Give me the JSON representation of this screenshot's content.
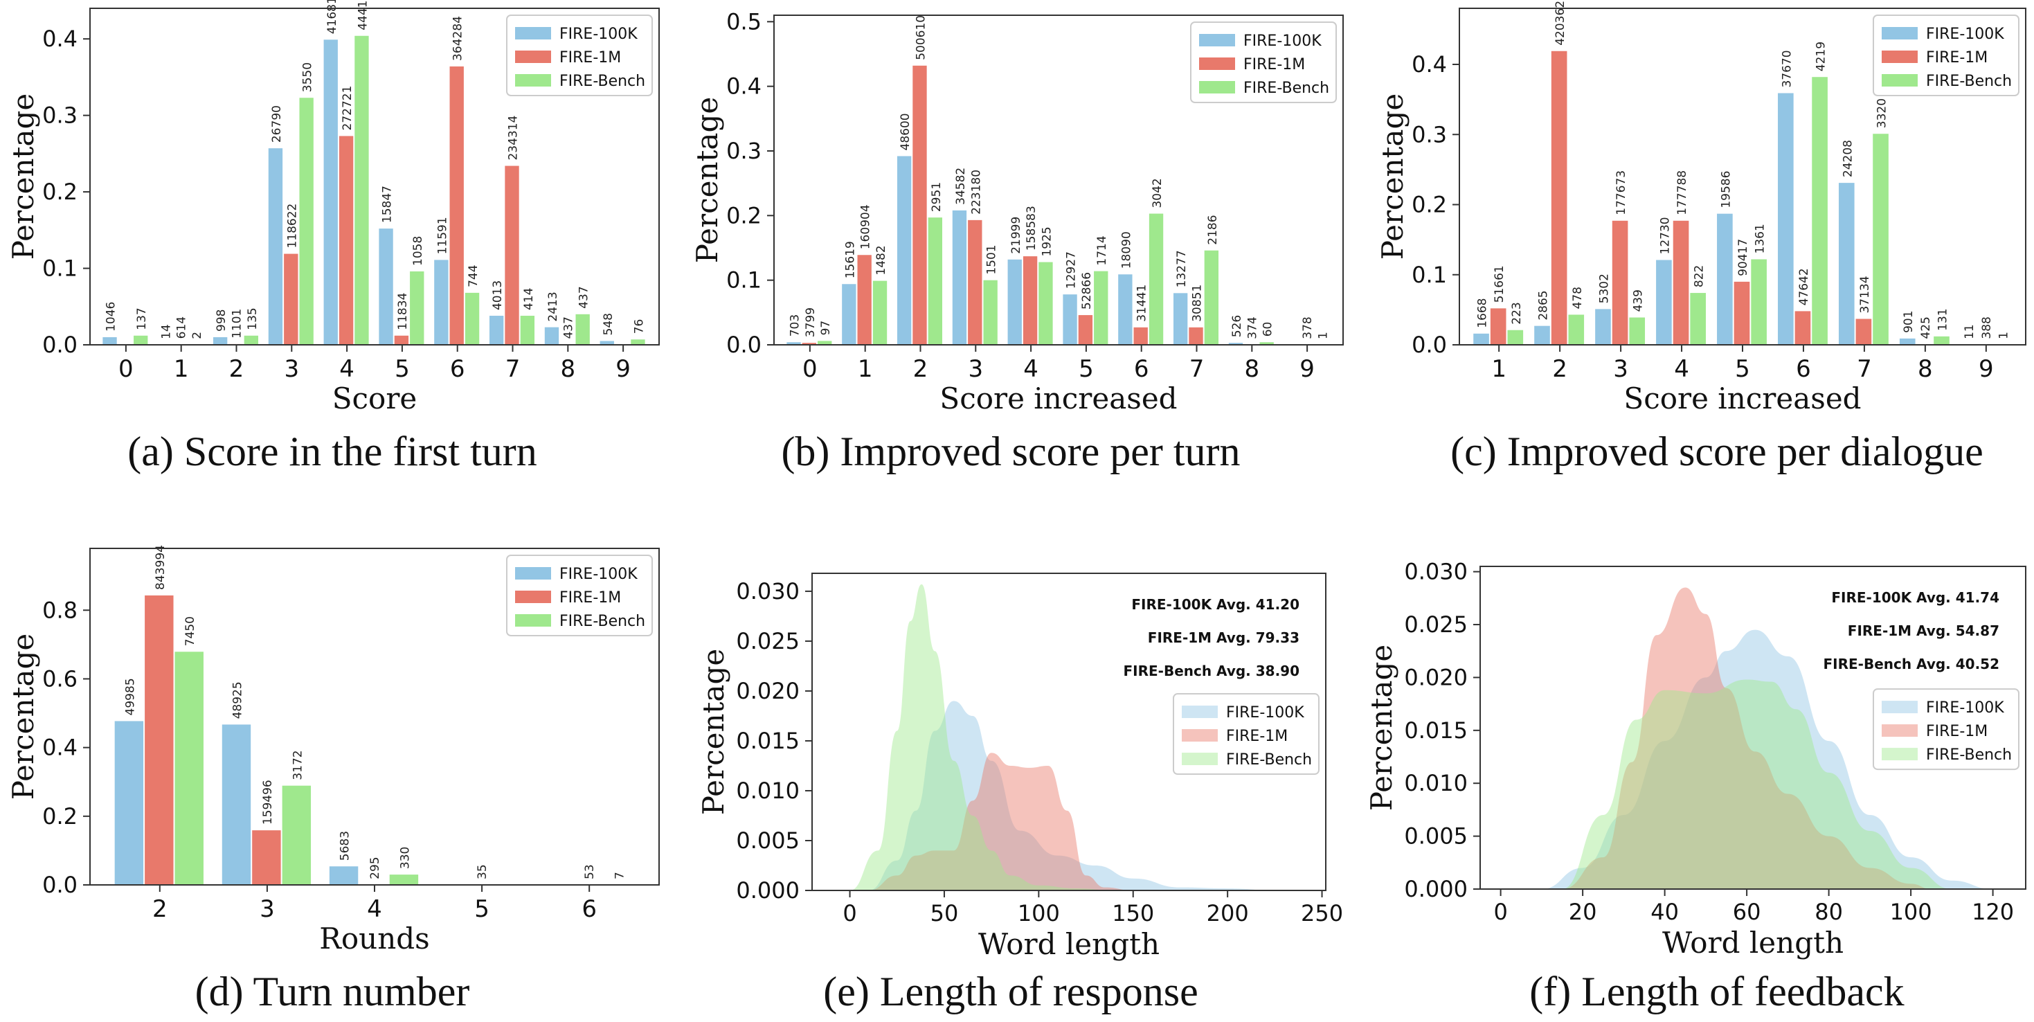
{
  "colors": {
    "fire100k": "#92c5e4",
    "fire1m": "#e8796b",
    "firebench": "#9fe88d"
  },
  "captions": [
    "(a) Score in the first turn",
    "(b) Improved score per turn",
    "(c) Improved score per dialogue",
    "(d) Turn number",
    "(e) Length of response",
    "(f) Length of feedback"
  ],
  "chart_data": [
    {
      "type": "bar",
      "xlabel": "Score",
      "ylabel": "Percentage",
      "categories": [
        "0",
        "1",
        "2",
        "3",
        "4",
        "5",
        "6",
        "7",
        "8",
        "9"
      ],
      "ylim": [
        0,
        0.44
      ],
      "yticks": [
        "0.0",
        "0.1",
        "0.2",
        "0.3",
        "0.4"
      ],
      "legend_position": "top-right",
      "series": [
        {
          "name": "FIRE-100K",
          "values": [
            0.01,
            0.0001,
            0.01,
            0.257,
            0.399,
            0.152,
            0.111,
            0.038,
            0.023,
            0.005
          ],
          "labels": [
            "1046",
            "14",
            "998",
            "26790",
            "41681",
            "15847",
            "11591",
            "4013",
            "2413",
            "548"
          ]
        },
        {
          "name": "FIRE-1M",
          "values": [
            0.0001,
            0.0006,
            0.001,
            0.119,
            0.273,
            0.012,
            0.364,
            0.234,
            0.0004,
            0.0
          ],
          "labels": [
            "",
            "614",
            "1101",
            "118622",
            "272721",
            "11834",
            "364284",
            "234314",
            "437",
            ""
          ]
        },
        {
          "name": "FIRE-Bench",
          "values": [
            0.012,
            0.0002,
            0.012,
            0.323,
            0.404,
            0.096,
            0.068,
            0.038,
            0.04,
            0.007
          ],
          "labels": [
            "137",
            "2",
            "135",
            "3550",
            "4441",
            "1058",
            "744",
            "414",
            "437",
            "76"
          ]
        }
      ]
    },
    {
      "type": "bar",
      "xlabel": "Score increased",
      "ylabel": "Percentage",
      "categories": [
        "0",
        "1",
        "2",
        "3",
        "4",
        "5",
        "6",
        "7",
        "8",
        "9"
      ],
      "ylim": [
        0,
        0.51
      ],
      "yticks": [
        "0.0",
        "0.1",
        "0.2",
        "0.3",
        "0.4",
        "0.5"
      ],
      "legend_position": "top-right",
      "series": [
        {
          "name": "FIRE-100K",
          "values": [
            0.004,
            0.094,
            0.292,
            0.208,
            0.132,
            0.078,
            0.109,
            0.08,
            0.003,
            0.0
          ],
          "labels": [
            "703",
            "15619",
            "48600",
            "34582",
            "21999",
            "12927",
            "18090",
            "13277",
            "526",
            ""
          ]
        },
        {
          "name": "FIRE-1M",
          "values": [
            0.003,
            0.139,
            0.432,
            0.193,
            0.137,
            0.046,
            0.027,
            0.027,
            0.0003,
            0.0003
          ],
          "labels": [
            "3799",
            "160904",
            "500610",
            "223180",
            "158583",
            "52866",
            "31441",
            "30851",
            "374",
            "378"
          ]
        },
        {
          "name": "FIRE-Bench",
          "values": [
            0.006,
            0.099,
            0.197,
            0.1,
            0.128,
            0.114,
            0.203,
            0.146,
            0.004,
            0.0
          ],
          "labels": [
            "97",
            "1482",
            "2951",
            "1501",
            "1925",
            "1714",
            "3042",
            "2186",
            "60",
            "1"
          ]
        }
      ]
    },
    {
      "type": "bar",
      "xlabel": "Score increased",
      "ylabel": "Percentage",
      "categories": [
        "1",
        "2",
        "3",
        "4",
        "5",
        "6",
        "7",
        "8",
        "9"
      ],
      "ylim": [
        0,
        0.48
      ],
      "yticks": [
        "0.0",
        "0.1",
        "0.2",
        "0.3",
        "0.4"
      ],
      "legend_position": "top-right",
      "series": [
        {
          "name": "FIRE-100K",
          "values": [
            0.016,
            0.027,
            0.051,
            0.121,
            0.187,
            0.359,
            0.231,
            0.009,
            0.0001
          ],
          "labels": [
            "1668",
            "2865",
            "5302",
            "12730",
            "19586",
            "37670",
            "24208",
            "901",
            "11"
          ]
        },
        {
          "name": "FIRE-1M",
          "values": [
            0.052,
            0.419,
            0.177,
            0.177,
            0.09,
            0.048,
            0.037,
            0.0004,
            0.0004
          ],
          "labels": [
            "51661",
            "420362",
            "177673",
            "177788",
            "90417",
            "47642",
            "37134",
            "425",
            "388"
          ]
        },
        {
          "name": "FIRE-Bench",
          "values": [
            0.021,
            0.043,
            0.039,
            0.074,
            0.122,
            0.382,
            0.301,
            0.012,
            0.0001
          ],
          "labels": [
            "223",
            "478",
            "439",
            "822",
            "1361",
            "4219",
            "3320",
            "131",
            "1"
          ]
        }
      ]
    },
    {
      "type": "bar",
      "xlabel": "Rounds",
      "ylabel": "Percentage",
      "categories": [
        "2",
        "3",
        "4",
        "5",
        "6"
      ],
      "ylim": [
        0,
        0.98
      ],
      "yticks": [
        "0.0",
        "0.2",
        "0.4",
        "0.6",
        "0.8"
      ],
      "legend_position": "top-right",
      "series": [
        {
          "name": "FIRE-100K",
          "values": [
            0.477,
            0.467,
            0.054,
            0.0,
            0.0
          ],
          "labels": [
            "49985",
            "48925",
            "5683",
            "",
            ""
          ]
        },
        {
          "name": "FIRE-1M",
          "values": [
            0.843,
            0.159,
            0.0003,
            0.0,
            0.0
          ],
          "labels": [
            "843994",
            "159496",
            "295",
            "35",
            "53"
          ]
        },
        {
          "name": "FIRE-Bench",
          "values": [
            0.679,
            0.289,
            0.03,
            0.0,
            0.0
          ],
          "labels": [
            "7450",
            "3172",
            "330",
            "",
            "7"
          ]
        }
      ]
    },
    {
      "type": "area",
      "xlabel": "Word length",
      "ylabel": "Percentage",
      "xlim": [
        -20,
        252
      ],
      "ylim": [
        0,
        0.0318
      ],
      "xticks": [
        "0",
        "50",
        "100",
        "150",
        "200",
        "250"
      ],
      "yticks": [
        "0.000",
        "0.005",
        "0.010",
        "0.015",
        "0.020",
        "0.025",
        "0.030"
      ],
      "legend_position": "center-right",
      "annotations": [
        "FIRE-100K Avg. 41.20",
        "FIRE-1M Avg. 79.33",
        "FIRE-Bench Avg. 38.90"
      ],
      "series": [
        {
          "name": "FIRE-100K",
          "x": [
            10,
            25,
            35,
            45,
            55,
            65,
            75,
            90,
            110,
            130,
            150,
            175,
            200,
            225
          ],
          "y": [
            0,
            0.003,
            0.008,
            0.016,
            0.019,
            0.0175,
            0.013,
            0.006,
            0.0035,
            0.0025,
            0.0012,
            0.0003,
            0.0002,
            0
          ]
        },
        {
          "name": "FIRE-1M",
          "x": [
            10,
            25,
            35,
            45,
            55,
            65,
            75,
            85,
            95,
            105,
            115,
            125,
            135,
            150
          ],
          "y": [
            0,
            0.0015,
            0.0035,
            0.004,
            0.004,
            0.009,
            0.0138,
            0.0125,
            0.0123,
            0.0125,
            0.008,
            0.0015,
            0.0003,
            0
          ]
        },
        {
          "name": "FIRE-Bench",
          "x": [
            0,
            15,
            25,
            32,
            38,
            45,
            55,
            65,
            75,
            85,
            100,
            120,
            140
          ],
          "y": [
            0,
            0.004,
            0.016,
            0.027,
            0.0307,
            0.024,
            0.013,
            0.0075,
            0.004,
            0.0015,
            0.0005,
            0.0002,
            0
          ]
        }
      ]
    },
    {
      "type": "area",
      "xlabel": "Word length",
      "ylabel": "Percentage",
      "xlim": [
        -5,
        128
      ],
      "ylim": [
        0,
        0.0305
      ],
      "xticks": [
        "0",
        "20",
        "40",
        "60",
        "80",
        "100",
        "120"
      ],
      "yticks": [
        "0.000",
        "0.005",
        "0.010",
        "0.015",
        "0.020",
        "0.025",
        "0.030"
      ],
      "legend_position": "center-right",
      "annotations": [
        "FIRE-100K Avg. 41.74",
        "FIRE-1M Avg. 54.87",
        "FIRE-Bench Avg. 40.52"
      ],
      "series": [
        {
          "name": "FIRE-100K",
          "x": [
            10,
            20,
            30,
            40,
            50,
            55,
            62,
            70,
            80,
            90,
            100,
            110,
            120
          ],
          "y": [
            0,
            0.002,
            0.007,
            0.014,
            0.02,
            0.0225,
            0.0245,
            0.022,
            0.014,
            0.007,
            0.003,
            0.0008,
            0
          ]
        },
        {
          "name": "FIRE-1M",
          "x": [
            15,
            25,
            32,
            38,
            45,
            50,
            55,
            62,
            70,
            80,
            90,
            100,
            105
          ],
          "y": [
            0,
            0.003,
            0.012,
            0.024,
            0.0285,
            0.026,
            0.019,
            0.013,
            0.009,
            0.005,
            0.002,
            0.0005,
            0
          ]
        },
        {
          "name": "FIRE-Bench",
          "x": [
            15,
            25,
            33,
            40,
            50,
            60,
            66,
            72,
            80,
            90,
            100,
            110
          ],
          "y": [
            0,
            0.007,
            0.016,
            0.0188,
            0.0185,
            0.0198,
            0.0196,
            0.017,
            0.011,
            0.0055,
            0.002,
            0
          ]
        }
      ]
    }
  ]
}
